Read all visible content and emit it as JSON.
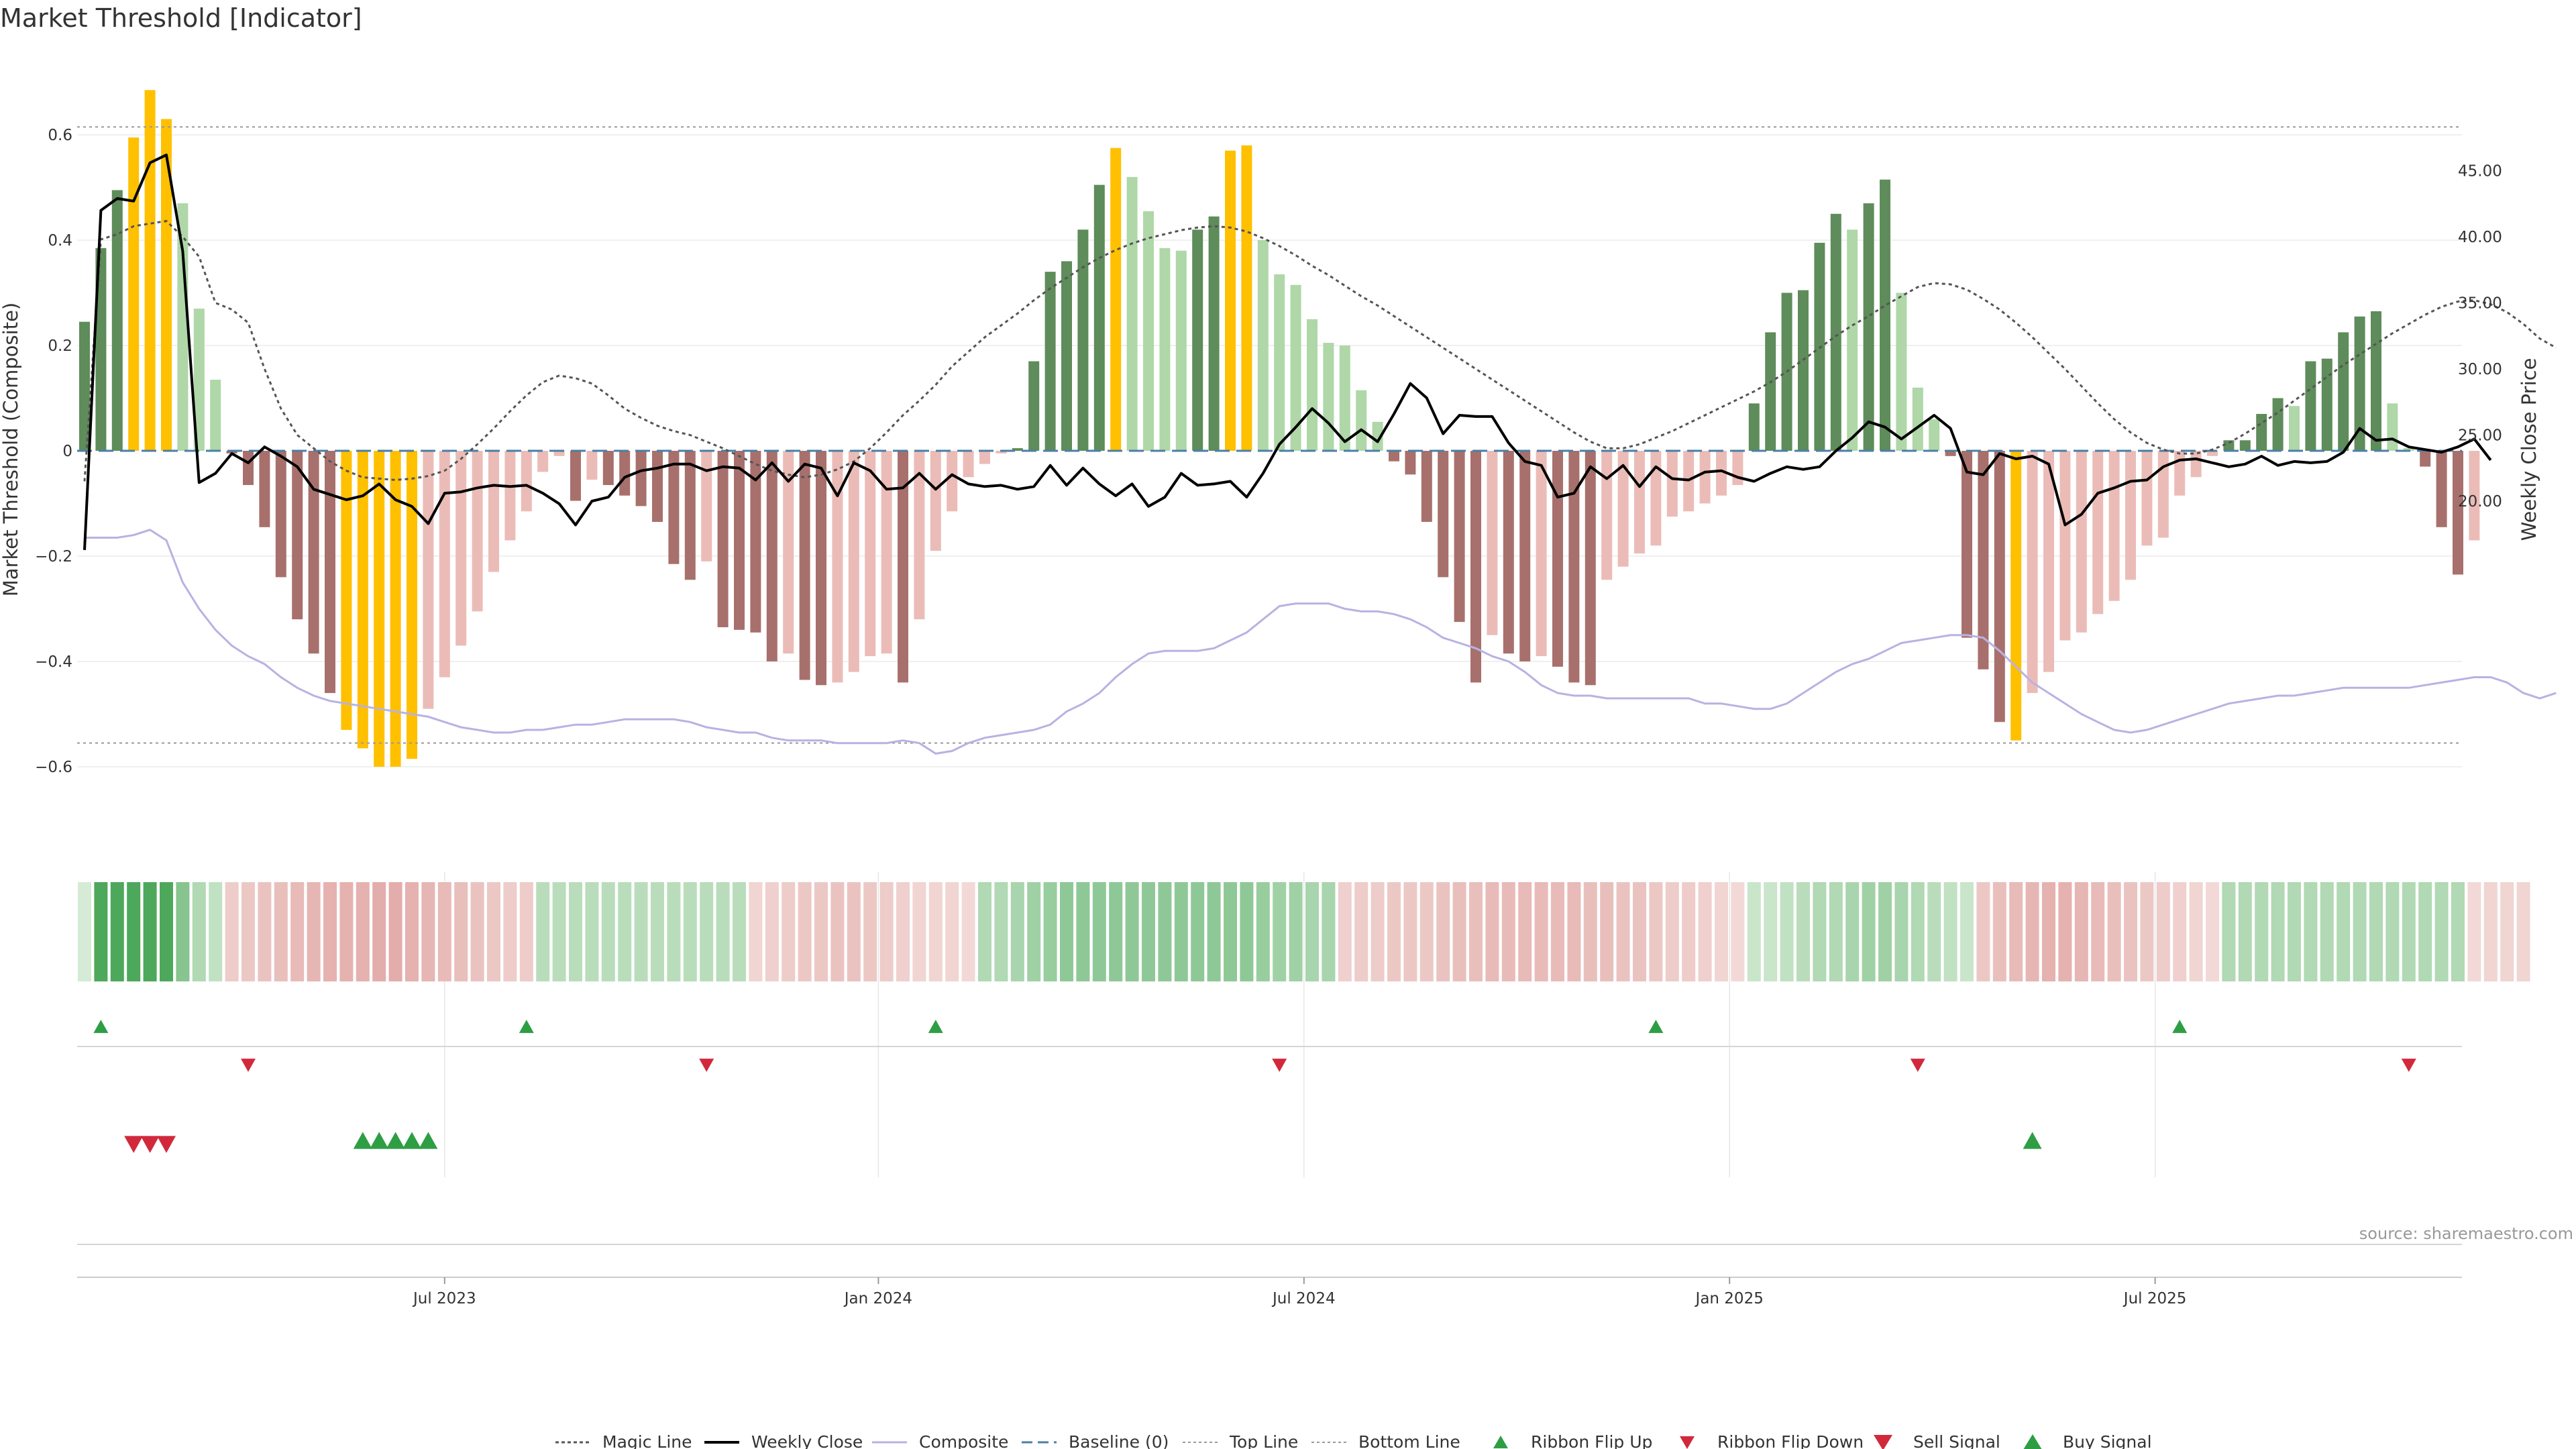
{
  "title": "Market Threshold [Indicator]",
  "source": "source: sharemaestro.com",
  "chart_data": {
    "type": "bar",
    "title": "Market Threshold [Indicator]",
    "y_left": {
      "label": "Market Threshold (Composite)",
      "ylim": [
        -0.75,
        0.75
      ],
      "ticks": [
        0.6,
        0.4,
        0.2,
        0,
        -0.2,
        -0.4,
        -0.6
      ],
      "tick_labels": [
        "0.6",
        "0.4",
        "0.2",
        "0",
        "−0.2",
        "−0.4",
        "−0.6"
      ]
    },
    "y_right": {
      "label": "Weekly Close Price",
      "ylim": [
        16.3,
        46.3
      ],
      "ticks": [
        45,
        40,
        35,
        30,
        25,
        20
      ],
      "tick_labels": [
        "45.00",
        "40.00",
        "35.00",
        "30.00",
        "25.00",
        "20.00"
      ]
    },
    "x_axis": {
      "tick_labels": [
        "Jul 2023",
        "Jan 2024",
        "Jul 2024",
        "Jan 2025",
        "Jul 2025"
      ],
      "tick_index": [
        22,
        48.5,
        74.5,
        100.5,
        126.5
      ]
    },
    "top_line": 0.615,
    "bottom_line": -0.555,
    "baseline": 0,
    "composite_bars": [
      0.245,
      0.385,
      0.495,
      0.595,
      0.685,
      0.63,
      0.47,
      0.27,
      0.135,
      -0.005,
      -0.065,
      -0.145,
      -0.24,
      -0.32,
      -0.385,
      -0.46,
      -0.53,
      -0.565,
      -0.6,
      -0.6,
      -0.585,
      -0.49,
      -0.43,
      -0.37,
      -0.305,
      -0.23,
      -0.17,
      -0.115,
      -0.04,
      -0.01,
      -0.095,
      -0.055,
      -0.065,
      -0.085,
      -0.105,
      -0.135,
      -0.215,
      -0.245,
      -0.21,
      -0.335,
      -0.34,
      -0.345,
      -0.4,
      -0.385,
      -0.435,
      -0.445,
      -0.44,
      -0.42,
      -0.39,
      -0.385,
      -0.44,
      -0.32,
      -0.19,
      -0.115,
      -0.05,
      -0.025,
      -0.005,
      0.005,
      0.17,
      0.34,
      0.36,
      0.42,
      0.505,
      0.575,
      0.52,
      0.455,
      0.385,
      0.38,
      0.42,
      0.445,
      0.57,
      0.58,
      0.4,
      0.335,
      0.315,
      0.25,
      0.205,
      0.2,
      0.115,
      0.055,
      -0.02,
      -0.045,
      -0.135,
      -0.24,
      -0.325,
      -0.44,
      -0.35,
      -0.385,
      -0.4,
      -0.39,
      -0.41,
      -0.44,
      -0.445,
      -0.245,
      -0.22,
      -0.195,
      -0.18,
      -0.125,
      -0.115,
      -0.1,
      -0.085,
      -0.065,
      0.09,
      0.225,
      0.3,
      0.305,
      0.395,
      0.45,
      0.42,
      0.47,
      0.515,
      0.3,
      0.12,
      0.06,
      -0.01,
      -0.355,
      -0.415,
      -0.515,
      -0.55,
      -0.46,
      -0.42,
      -0.36,
      -0.345,
      -0.31,
      -0.285,
      -0.245,
      -0.18,
      -0.165,
      -0.085,
      -0.05,
      -0.01,
      0.02,
      0.02,
      0.07,
      0.1,
      0.085,
      0.17,
      0.175,
      0.225,
      0.255,
      0.265,
      0.09,
      0.005,
      -0.03,
      -0.145,
      -0.235,
      -0.17
    ],
    "weekly_close": [
      16.3,
      42.0,
      42.9,
      42.7,
      45.6,
      46.2,
      38.9,
      21.4,
      22.1,
      23.6,
      22.9,
      24.1,
      23.4,
      22.6,
      20.9,
      20.5,
      20.1,
      20.4,
      21.3,
      20.1,
      19.6,
      18.3,
      20.6,
      20.7,
      21.0,
      21.2,
      21.1,
      21.2,
      20.6,
      19.8,
      18.2,
      20.0,
      20.3,
      21.8,
      22.3,
      22.5,
      22.8,
      22.8,
      22.3,
      22.6,
      22.5,
      21.6,
      22.9,
      21.5,
      22.8,
      22.5,
      20.4,
      22.9,
      22.3,
      20.9,
      21.0,
      22.1,
      20.9,
      22.0,
      21.3,
      21.1,
      21.2,
      20.9,
      21.1,
      22.7,
      21.2,
      22.5,
      21.3,
      20.4,
      21.3,
      19.6,
      20.3,
      22.1,
      21.2,
      21.3,
      21.5,
      20.3,
      22.1,
      24.3,
      25.6,
      27.0,
      25.9,
      24.5,
      25.4,
      24.5,
      26.6,
      28.9,
      27.8,
      25.1,
      26.5,
      26.4,
      26.4,
      24.4,
      23.0,
      22.7,
      20.3,
      20.6,
      22.6,
      21.7,
      22.7,
      21.1,
      22.6,
      21.7,
      21.6,
      22.2,
      22.3,
      21.8,
      21.5,
      22.1,
      22.6,
      22.4,
      22.6,
      23.8,
      24.8,
      26.0,
      25.6,
      24.7,
      25.6,
      26.5,
      25.5,
      22.2,
      22.0,
      23.6,
      23.2,
      23.4,
      22.8,
      18.2,
      19.0,
      20.6,
      21.0,
      21.5,
      21.6,
      22.6,
      23.1,
      23.2,
      22.9,
      22.6,
      22.8,
      23.4,
      22.7,
      23.0,
      22.9,
      23.0,
      23.7,
      25.5,
      24.6,
      24.7,
      24.1,
      23.9,
      23.7,
      24.1,
      24.7,
      23.1
    ],
    "magic_line_price": [
      21.5,
      39.8,
      40.2,
      40.8,
      41.0,
      41.2,
      40.0,
      38.5,
      35.0,
      34.5,
      33.5,
      30.0,
      27.0,
      25.0,
      24.0,
      23.0,
      22.3,
      21.8,
      21.7,
      21.6,
      21.7,
      21.9,
      22.3,
      23.2,
      24.3,
      25.5,
      26.8,
      28.0,
      29.0,
      29.5,
      29.3,
      28.9,
      28.0,
      27.0,
      26.3,
      25.7,
      25.3,
      25.0,
      24.5,
      24.0,
      23.4,
      22.8,
      22.3,
      22.0,
      21.8,
      22.0,
      22.4,
      23.0,
      24.0,
      25.2,
      26.5,
      27.6,
      28.8,
      30.2,
      31.3,
      32.4,
      33.3,
      34.2,
      35.2,
      36.1,
      36.9,
      37.7,
      38.4,
      39.0,
      39.5,
      39.9,
      40.2,
      40.5,
      40.7,
      40.8,
      40.7,
      40.4,
      39.9,
      39.3,
      38.6,
      37.8,
      37.1,
      36.3,
      35.5,
      34.8,
      34.0,
      33.2,
      32.4,
      31.6,
      30.8,
      30.0,
      29.2,
      28.4,
      27.6,
      26.8,
      26.0,
      25.2,
      24.5,
      24.0,
      24.0,
      24.3,
      24.8,
      25.3,
      25.9,
      26.5,
      27.1,
      27.7,
      28.3,
      29.0,
      29.8,
      30.7,
      31.6,
      32.5,
      33.3,
      34.0,
      34.8,
      35.5,
      36.2,
      36.5,
      36.4,
      36.0,
      35.3,
      34.5,
      33.5,
      32.4,
      31.2,
      30.0,
      28.7,
      27.4,
      26.2,
      25.2,
      24.4,
      23.9,
      23.6,
      23.6,
      23.9,
      24.4,
      25.1,
      25.9,
      26.7,
      27.6,
      28.5,
      29.4,
      30.3,
      31.1,
      31.9,
      32.7,
      33.4,
      34.1,
      34.7,
      35.1,
      35.2,
      34.9,
      34.3,
      33.4,
      32.3,
      31.6
    ],
    "composite_line": [
      -0.165,
      -0.165,
      -0.165,
      -0.16,
      -0.15,
      -0.17,
      -0.25,
      -0.3,
      -0.34,
      -0.37,
      -0.39,
      -0.405,
      -0.43,
      -0.45,
      -0.465,
      -0.475,
      -0.48,
      -0.485,
      -0.49,
      -0.495,
      -0.5,
      -0.505,
      -0.515,
      -0.525,
      -0.53,
      -0.535,
      -0.535,
      -0.53,
      -0.53,
      -0.525,
      -0.52,
      -0.52,
      -0.515,
      -0.51,
      -0.51,
      -0.51,
      -0.51,
      -0.515,
      -0.525,
      -0.53,
      -0.535,
      -0.535,
      -0.545,
      -0.55,
      -0.55,
      -0.55,
      -0.555,
      -0.555,
      -0.555,
      -0.555,
      -0.55,
      -0.555,
      -0.575,
      -0.57,
      -0.555,
      -0.545,
      -0.54,
      -0.535,
      -0.53,
      -0.52,
      -0.495,
      -0.48,
      -0.46,
      -0.43,
      -0.405,
      -0.385,
      -0.38,
      -0.38,
      -0.38,
      -0.375,
      -0.36,
      -0.345,
      -0.32,
      -0.295,
      -0.29,
      -0.29,
      -0.29,
      -0.3,
      -0.305,
      -0.305,
      -0.31,
      -0.32,
      -0.335,
      -0.355,
      -0.365,
      -0.375,
      -0.39,
      -0.4,
      -0.42,
      -0.445,
      -0.46,
      -0.465,
      -0.465,
      -0.47,
      -0.47,
      -0.47,
      -0.47,
      -0.47,
      -0.47,
      -0.48,
      -0.48,
      -0.485,
      -0.49,
      -0.49,
      -0.48,
      -0.46,
      -0.44,
      -0.42,
      -0.405,
      -0.395,
      -0.38,
      -0.365,
      -0.36,
      -0.355,
      -0.35,
      -0.35,
      -0.355,
      -0.38,
      -0.41,
      -0.44,
      -0.46,
      -0.48,
      -0.5,
      -0.515,
      -0.53,
      -0.535,
      -0.53,
      -0.52,
      -0.51,
      -0.5,
      -0.49,
      -0.48,
      -0.475,
      -0.47,
      -0.465,
      -0.465,
      -0.46,
      -0.455,
      -0.45,
      -0.45,
      -0.45,
      -0.45,
      -0.45,
      -0.445,
      -0.44,
      -0.435,
      -0.43,
      -0.43,
      -0.44,
      -0.46,
      -0.47,
      -0.46
    ],
    "ribbon": {
      "levels": [
        0.12,
        0.95,
        0.95,
        0.95,
        0.95,
        0.95,
        0.6,
        0.35,
        0.25,
        -0.3,
        -0.35,
        -0.4,
        -0.45,
        -0.5,
        -0.55,
        -0.6,
        -0.6,
        -0.6,
        -0.65,
        -0.65,
        -0.6,
        -0.55,
        -0.5,
        -0.45,
        -0.4,
        -0.35,
        -0.3,
        -0.3,
        0.3,
        0.3,
        0.3,
        0.3,
        0.3,
        0.3,
        0.3,
        0.3,
        0.3,
        0.3,
        0.3,
        0.3,
        0.3,
        -0.2,
        -0.25,
        -0.3,
        -0.35,
        -0.35,
        -0.4,
        -0.4,
        -0.35,
        -0.3,
        -0.25,
        -0.2,
        -0.2,
        -0.2,
        -0.15,
        0.35,
        0.35,
        0.4,
        0.45,
        0.5,
        0.55,
        0.55,
        0.55,
        0.55,
        0.55,
        0.55,
        0.55,
        0.55,
        0.55,
        0.55,
        0.55,
        0.55,
        0.5,
        0.45,
        0.45,
        0.4,
        0.4,
        -0.25,
        -0.3,
        -0.3,
        -0.35,
        -0.35,
        -0.35,
        -0.4,
        -0.45,
        -0.45,
        -0.5,
        -0.5,
        -0.5,
        -0.5,
        -0.5,
        -0.5,
        -0.45,
        -0.45,
        -0.4,
        -0.4,
        -0.35,
        -0.3,
        -0.3,
        -0.25,
        -0.2,
        -0.15,
        0.2,
        0.2,
        0.25,
        0.3,
        0.35,
        0.35,
        0.4,
        0.45,
        0.45,
        0.4,
        0.35,
        0.3,
        0.25,
        0.2,
        -0.35,
        -0.45,
        -0.5,
        -0.55,
        -0.6,
        -0.6,
        -0.55,
        -0.5,
        -0.45,
        -0.4,
        -0.35,
        -0.3,
        -0.25,
        -0.2,
        -0.15,
        0.35,
        0.35,
        0.35,
        0.35,
        0.35,
        0.35,
        0.35,
        0.35,
        0.35,
        0.35,
        0.35,
        0.35,
        0.35,
        0.35,
        0.35,
        -0.15,
        -0.2,
        -0.2,
        -0.2
      ]
    },
    "ribbon_flip_up_index": [
      1,
      27,
      52,
      96,
      128
    ],
    "ribbon_flip_down_index": [
      10,
      38,
      73,
      112,
      142
    ],
    "sell_signal_index": [
      3,
      4,
      5
    ],
    "buy_signal_index": [
      17,
      18,
      19,
      20,
      21,
      119
    ],
    "legend": [
      "Magic Line",
      "Weekly Close",
      "Composite",
      "Baseline (0)",
      "Top Line",
      "Bottom Line",
      "Ribbon Flip Up",
      "Ribbon Flip Down",
      "Sell Signal",
      "Buy Signal"
    ],
    "legend_position": "bottom-center",
    "colors": {
      "bull_strong": "#5e8c5a",
      "bull_weak": "#afd7a8",
      "bear_strong": "#a8706c",
      "bear_weak": "#ebbcb7",
      "extreme": "#ffc000",
      "close": "#000000",
      "composite": "#b8b2e2",
      "magic": "#555555",
      "baseline": "#4a7fa5",
      "up_marker": "#2e9e44",
      "down_marker": "#d1293b"
    },
    "grid": true
  }
}
